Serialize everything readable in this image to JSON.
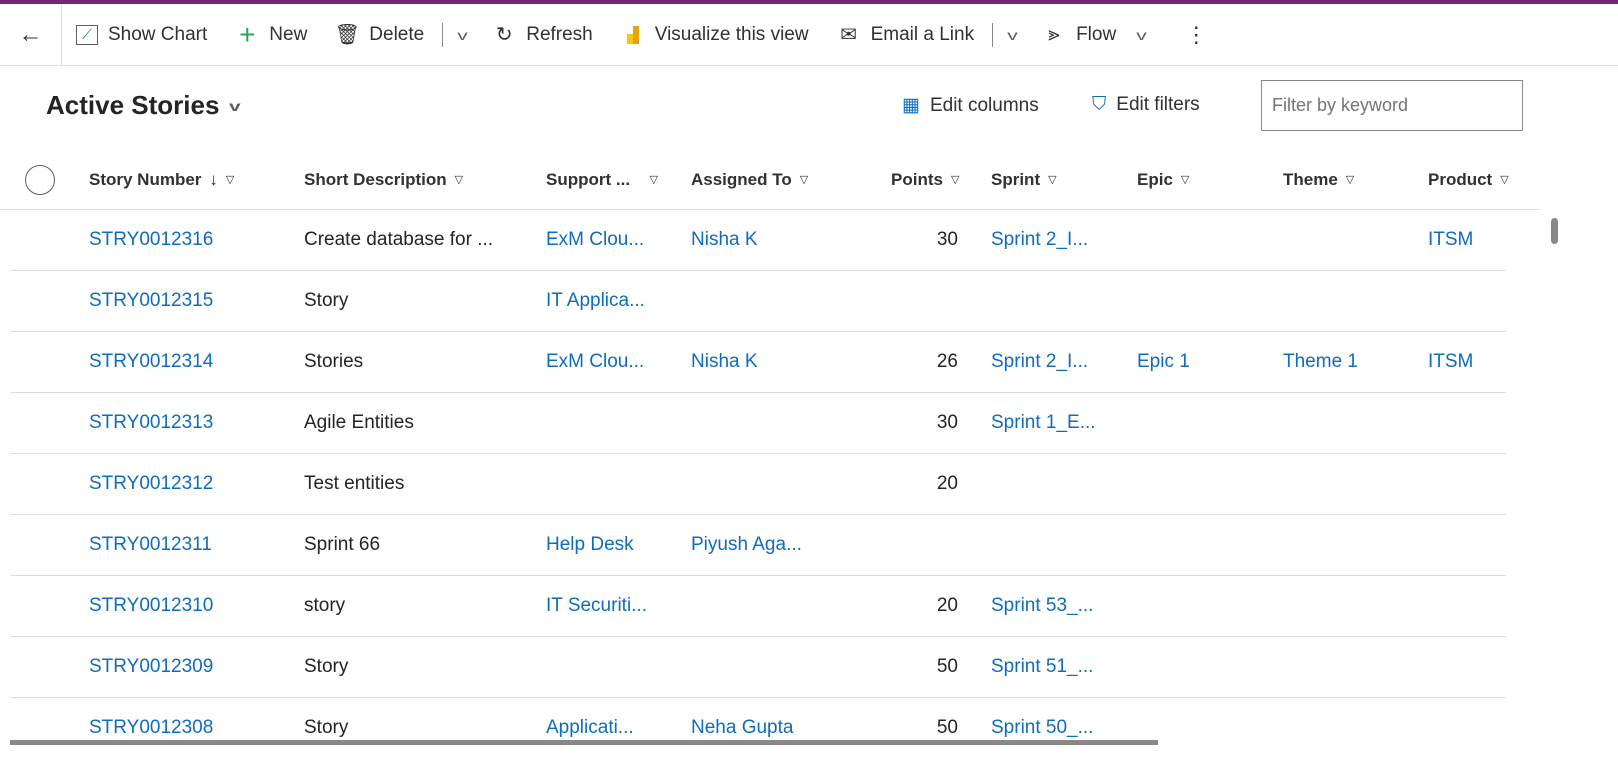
{
  "toolbar": {
    "show_chart": "Show Chart",
    "new": "New",
    "delete": "Delete",
    "refresh": "Refresh",
    "visualize": "Visualize this view",
    "email": "Email a Link",
    "flow": "Flow"
  },
  "view": {
    "title": "Active Stories",
    "edit_columns": "Edit columns",
    "edit_filters": "Edit filters",
    "filter_placeholder": "Filter by keyword"
  },
  "columns": [
    "Story Number",
    "Short Description",
    "Support ...",
    "Assigned To",
    "Points",
    "Sprint",
    "Epic",
    "Theme",
    "Product"
  ],
  "rows": [
    {
      "number": "STRY0012316",
      "desc": "Create database for ...",
      "support": "ExM Clou...",
      "assigned": "Nisha K",
      "points": "30",
      "sprint": "Sprint 2_I...",
      "epic": "",
      "theme": "",
      "product": "ITSM"
    },
    {
      "number": "STRY0012315",
      "desc": "Story",
      "support": "IT Applica...",
      "assigned": "",
      "points": "",
      "sprint": "",
      "epic": "",
      "theme": "",
      "product": ""
    },
    {
      "number": "STRY0012314",
      "desc": "Stories",
      "support": "ExM Clou...",
      "assigned": "Nisha K",
      "points": "26",
      "sprint": "Sprint 2_I...",
      "epic": "Epic 1",
      "theme": "Theme 1",
      "product": "ITSM"
    },
    {
      "number": "STRY0012313",
      "desc": "Agile Entities",
      "support": "",
      "assigned": "",
      "points": "30",
      "sprint": "Sprint 1_E...",
      "epic": "",
      "theme": "",
      "product": ""
    },
    {
      "number": "STRY0012312",
      "desc": "Test entities",
      "support": "",
      "assigned": "",
      "points": "20",
      "sprint": "",
      "epic": "",
      "theme": "",
      "product": ""
    },
    {
      "number": "STRY0012311",
      "desc": "Sprint 66",
      "support": "Help Desk",
      "assigned": "Piyush Aga...",
      "points": "",
      "sprint": "",
      "epic": "",
      "theme": "",
      "product": ""
    },
    {
      "number": "STRY0012310",
      "desc": "story",
      "support": "IT Securiti...",
      "assigned": "",
      "points": "20",
      "sprint": "Sprint 53_...",
      "epic": "",
      "theme": "",
      "product": ""
    },
    {
      "number": "STRY0012309",
      "desc": "Story",
      "support": "",
      "assigned": "",
      "points": "50",
      "sprint": "Sprint 51_...",
      "epic": "",
      "theme": "",
      "product": ""
    },
    {
      "number": "STRY0012308",
      "desc": "Story",
      "support": "Applicati...",
      "assigned": "Neha Gupta",
      "points": "50",
      "sprint": "Sprint 50_...",
      "epic": "",
      "theme": "",
      "product": ""
    }
  ]
}
